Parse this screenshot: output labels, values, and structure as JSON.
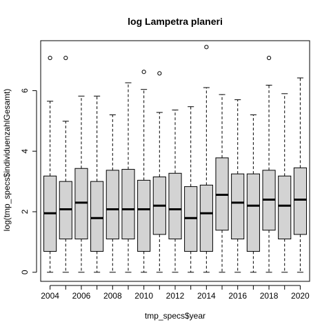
{
  "chart_data": {
    "type": "boxplot",
    "title": "log Lampetra planeri",
    "xlabel": "tmp_specs$year",
    "ylabel": "log(tmp_specs$individuenzahlGesamt)",
    "ylim": [
      -0.3,
      7.65
    ],
    "y_ticks": [
      0,
      2,
      4,
      6
    ],
    "x_tick_labels": [
      "2004",
      "2006",
      "2008",
      "2010",
      "2012",
      "2014",
      "2016",
      "2018",
      "2020"
    ],
    "box_fill": "#d3d3d3",
    "grid": false,
    "boxes": [
      {
        "year": 2004,
        "min": 0,
        "q1": 0.69,
        "median": 1.95,
        "q3": 3.18,
        "max": 5.65,
        "outliers": [
          7.08
        ]
      },
      {
        "year": 2005,
        "min": 0,
        "q1": 1.1,
        "median": 2.08,
        "q3": 3.0,
        "max": 4.99,
        "outliers": [
          7.08
        ]
      },
      {
        "year": 2006,
        "min": 0,
        "q1": 1.1,
        "median": 2.3,
        "q3": 3.43,
        "max": 5.82,
        "outliers": []
      },
      {
        "year": 2007,
        "min": 0,
        "q1": 0.69,
        "median": 1.79,
        "q3": 3.0,
        "max": 5.82,
        "outliers": []
      },
      {
        "year": 2008,
        "min": 0,
        "q1": 1.1,
        "median": 2.08,
        "q3": 3.37,
        "max": 5.2,
        "outliers": []
      },
      {
        "year": 2009,
        "min": 0,
        "q1": 1.1,
        "median": 2.08,
        "q3": 3.4,
        "max": 6.26,
        "outliers": []
      },
      {
        "year": 2010,
        "min": 0,
        "q1": 0.69,
        "median": 2.08,
        "q3": 3.04,
        "max": 6.04,
        "outliers": [
          6.62
        ]
      },
      {
        "year": 2011,
        "min": 0,
        "q1": 1.25,
        "median": 2.2,
        "q3": 3.15,
        "max": 5.28,
        "outliers": [
          6.57
        ]
      },
      {
        "year": 2012,
        "min": 0,
        "q1": 1.1,
        "median": 2.08,
        "q3": 3.27,
        "max": 5.36,
        "outliers": []
      },
      {
        "year": 2013,
        "min": 0,
        "q1": 0.69,
        "median": 1.79,
        "q3": 2.83,
        "max": 5.47,
        "outliers": []
      },
      {
        "year": 2014,
        "min": 0,
        "q1": 0.69,
        "median": 1.95,
        "q3": 2.88,
        "max": 6.1,
        "outliers": [
          7.44
        ]
      },
      {
        "year": 2015,
        "min": 0,
        "q1": 1.39,
        "median": 2.56,
        "q3": 3.78,
        "max": 5.87,
        "outliers": []
      },
      {
        "year": 2016,
        "min": 0,
        "q1": 1.1,
        "median": 2.3,
        "q3": 3.25,
        "max": 5.7,
        "outliers": []
      },
      {
        "year": 2017,
        "min": 0,
        "q1": 0.69,
        "median": 2.2,
        "q3": 3.25,
        "max": 5.2,
        "outliers": []
      },
      {
        "year": 2018,
        "min": 0,
        "q1": 1.39,
        "median": 2.4,
        "q3": 3.37,
        "max": 6.18,
        "outliers": [
          7.08
        ]
      },
      {
        "year": 2019,
        "min": 0,
        "q1": 1.1,
        "median": 2.2,
        "q3": 3.18,
        "max": 5.9,
        "outliers": []
      },
      {
        "year": 2020,
        "min": 0,
        "q1": 1.25,
        "median": 2.4,
        "q3": 3.45,
        "max": 6.42,
        "outliers": []
      }
    ]
  }
}
